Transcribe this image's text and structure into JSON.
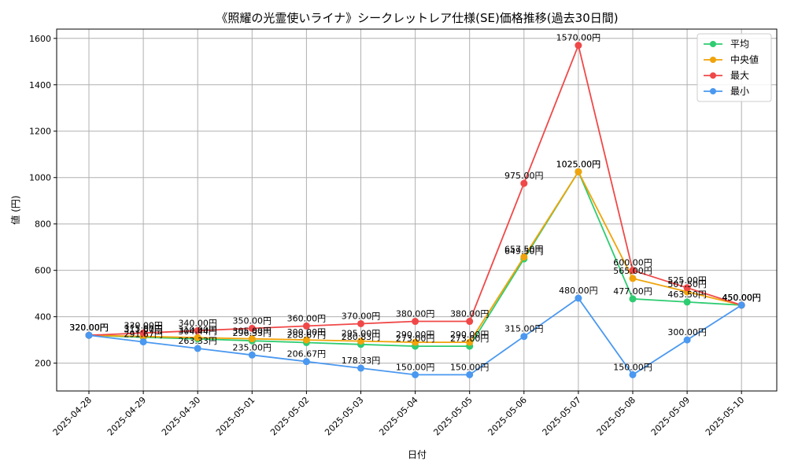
{
  "chart_data": {
    "type": "line",
    "title": "《照耀の光霊使いライナ》シークレットレア仕様(SE)価格推移(過去30日間)",
    "xlabel": "日付",
    "ylabel": "値 (円)",
    "ylim": [
      80,
      1640
    ],
    "yticks": [
      200,
      400,
      600,
      800,
      1000,
      1200,
      1400,
      1600
    ],
    "grid": true,
    "legend_position": "top-right",
    "value_suffix": "円",
    "categories": [
      "2025-04-28",
      "2025-04-29",
      "2025-04-30",
      "2025-05-01",
      "2025-05-02",
      "2025-05-03",
      "2025-05-04",
      "2025-05-05",
      "2025-05-06",
      "2025-05-07",
      "2025-05-08",
      "2025-05-09",
      "2025-05-10"
    ],
    "series": [
      {
        "name": "平均",
        "color": "#2ecc71",
        "values": [
          320.0,
          311.67,
          304.44,
          296.33,
          288.67,
          280.83,
          273.0,
          273.0,
          649.5,
          1025.0,
          477.0,
          463.5,
          450.0
        ]
      },
      {
        "name": "中央値",
        "color": "#f0a30a",
        "values": [
          320.0,
          315.0,
          310.0,
          305.0,
          300.0,
          295.0,
          290.0,
          290.0,
          657.5,
          1025.0,
          565.0,
          507.5,
          450.0
        ]
      },
      {
        "name": "最大",
        "color": "#f04848",
        "values": [
          320.0,
          330.0,
          340.0,
          350.0,
          360.0,
          370.0,
          380.0,
          380.0,
          975.0,
          1570.0,
          600.0,
          525.0,
          450.0
        ]
      },
      {
        "name": "最小",
        "color": "#4a98f0",
        "values": [
          320.0,
          291.67,
          263.33,
          235.0,
          206.67,
          178.33,
          150.0,
          150.0,
          315.0,
          480.0,
          150.0,
          300.0,
          450.0
        ]
      }
    ]
  }
}
